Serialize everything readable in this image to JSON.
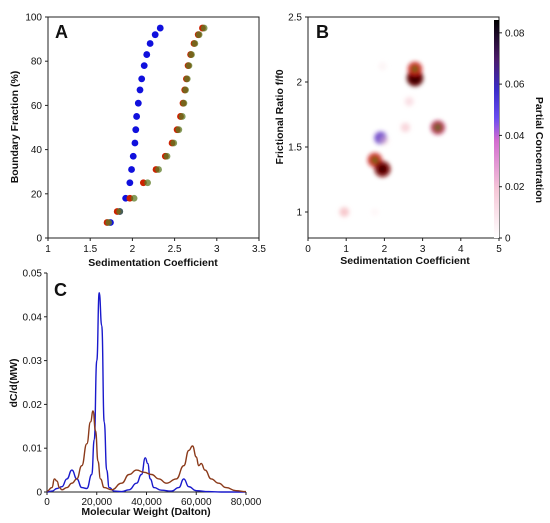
{
  "panels": {
    "A": {
      "letter": "A"
    },
    "B": {
      "letter": "B"
    },
    "C": {
      "letter": "C"
    }
  },
  "chart_data": [
    {
      "panel": "A",
      "type": "scatter",
      "xlabel": "Sedimentation Coefficient",
      "ylabel": "Boundary Fraction (%)",
      "xlim": [
        1,
        3.5
      ],
      "ylim": [
        0,
        100
      ],
      "xticks": [
        "1",
        "1.5",
        "2",
        "2.5",
        "3",
        "3.5"
      ],
      "yticks": [
        "0",
        "20",
        "40",
        "60",
        "80",
        "100"
      ],
      "grid": false,
      "series": [
        {
          "color": "#1010dd",
          "x": [
            1.74,
            1.85,
            1.92,
            1.97,
            1.99,
            2.01,
            2.03,
            2.04,
            2.05,
            2.07,
            2.09,
            2.11,
            2.14,
            2.17,
            2.21,
            2.27,
            2.33
          ],
          "y": [
            7,
            12,
            18,
            25,
            31,
            37,
            43,
            49,
            55,
            61,
            67,
            72,
            78,
            83,
            88,
            92,
            95
          ]
        },
        {
          "color": "#cc2200",
          "x": [
            1.7,
            1.82,
            1.97,
            2.13,
            2.28,
            2.39,
            2.47,
            2.53,
            2.57,
            2.6,
            2.62,
            2.64,
            2.66,
            2.69,
            2.73,
            2.78,
            2.83
          ],
          "y": [
            7,
            12,
            18,
            25,
            31,
            37,
            43,
            49,
            55,
            61,
            67,
            72,
            78,
            83,
            88,
            92,
            95
          ]
        },
        {
          "color": "#5c7a24",
          "x": [
            1.72,
            1.85,
            2.02,
            2.18,
            2.31,
            2.41,
            2.49,
            2.55,
            2.59,
            2.61,
            2.63,
            2.65,
            2.67,
            2.7,
            2.74,
            2.79,
            2.85
          ],
          "y": [
            7,
            12,
            18,
            25,
            31,
            37,
            43,
            49,
            55,
            61,
            67,
            72,
            78,
            83,
            88,
            92,
            95
          ]
        }
      ]
    },
    {
      "panel": "B",
      "type": "heatmap",
      "xlabel": "Sedimentation Coefficient",
      "ylabel": "Frictional Ratio f/f0",
      "colorbar_label": "Partial Concentration",
      "xlim": [
        0,
        5
      ],
      "ylim": [
        0.8,
        2.5
      ],
      "xticks": [
        "0",
        "1",
        "2",
        "3",
        "4",
        "5"
      ],
      "yticks": [
        "1",
        "1.5",
        "2",
        "2.5"
      ],
      "colorbar_ticks": [
        "0",
        "0.02",
        "0.04",
        "0.06",
        "0.08"
      ],
      "colorbar_range": [
        0,
        0.085
      ],
      "points": [
        {
          "s": 0.95,
          "f": 1.0,
          "c": 0.015
        },
        {
          "s": 1.75,
          "f": 1.4,
          "c": 0.05
        },
        {
          "s": 1.95,
          "f": 1.33,
          "c": 0.065
        },
        {
          "s": 1.9,
          "f": 1.57,
          "c": 0.038
        },
        {
          "s": 2.0,
          "f": 1.55,
          "c": 0.008
        },
        {
          "s": 2.55,
          "f": 1.65,
          "c": 0.012
        },
        {
          "s": 2.65,
          "f": 1.85,
          "c": 0.01
        },
        {
          "s": 2.8,
          "f": 2.03,
          "c": 0.07
        },
        {
          "s": 2.8,
          "f": 2.1,
          "c": 0.05
        },
        {
          "s": 3.4,
          "f": 1.65,
          "c": 0.048
        },
        {
          "s": 1.95,
          "f": 2.12,
          "c": 0.004
        },
        {
          "s": 1.75,
          "f": 1.0,
          "c": 0.003
        }
      ]
    },
    {
      "panel": "C",
      "type": "line",
      "xlabel": "Molecular Weight (Dalton)",
      "ylabel": "dC/d(MW)",
      "xlim": [
        0,
        80000
      ],
      "ylim": [
        0,
        0.05
      ],
      "xticks": [
        "0",
        "20,000",
        "40,000",
        "60,000",
        "80,000"
      ],
      "yticks": [
        "0",
        "0.01",
        "0.02",
        "0.03",
        "0.04",
        "0.05"
      ],
      "series": [
        {
          "color": "#1a1acc",
          "x": [
            0,
            2000,
            4000,
            6000,
            8000,
            10000,
            12000,
            14000,
            16000,
            18000,
            19000,
            20000,
            21000,
            22000,
            23000,
            24000,
            25000,
            27000,
            30000,
            33000,
            36000,
            38000,
            39500,
            40500,
            41500,
            43000,
            46000,
            50000,
            53000,
            55000,
            57000,
            60000,
            65000,
            70000,
            75000,
            80000
          ],
          "y": [
            0,
            0.0002,
            0.0008,
            0.0012,
            0.003,
            0.005,
            0.003,
            0.001,
            0.0008,
            0.004,
            0.012,
            0.03,
            0.0455,
            0.038,
            0.016,
            0.005,
            0.001,
            0.0002,
            0.0001,
            0.0005,
            0.002,
            0.004,
            0.0078,
            0.0065,
            0.003,
            0.001,
            0.0004,
            0.0002,
            0.001,
            0.003,
            0.0012,
            0.0003,
            0.0001,
            0,
            0,
            0
          ]
        },
        {
          "color": "#8b3a1a",
          "x": [
            0,
            2000,
            3000,
            4000,
            5000,
            6000,
            8000,
            10000,
            12000,
            14000,
            16000,
            17500,
            18500,
            19500,
            20500,
            21500,
            23000,
            26000,
            30000,
            33000,
            36000,
            39000,
            42000,
            45000,
            48000,
            52000,
            55000,
            57000,
            58500,
            60000,
            61000,
            62000,
            63500,
            66000,
            69000,
            72000,
            76000,
            80000
          ],
          "y": [
            0.0002,
            0.001,
            0.003,
            0.0025,
            0.001,
            0.0005,
            0.001,
            0.002,
            0.003,
            0.006,
            0.011,
            0.016,
            0.0185,
            0.014,
            0.007,
            0.003,
            0.001,
            0.0005,
            0.002,
            0.004,
            0.005,
            0.0045,
            0.004,
            0.003,
            0.002,
            0.003,
            0.006,
            0.0095,
            0.0105,
            0.008,
            0.006,
            0.0065,
            0.005,
            0.003,
            0.002,
            0.001,
            0.0003,
            0.0001
          ]
        }
      ]
    }
  ]
}
